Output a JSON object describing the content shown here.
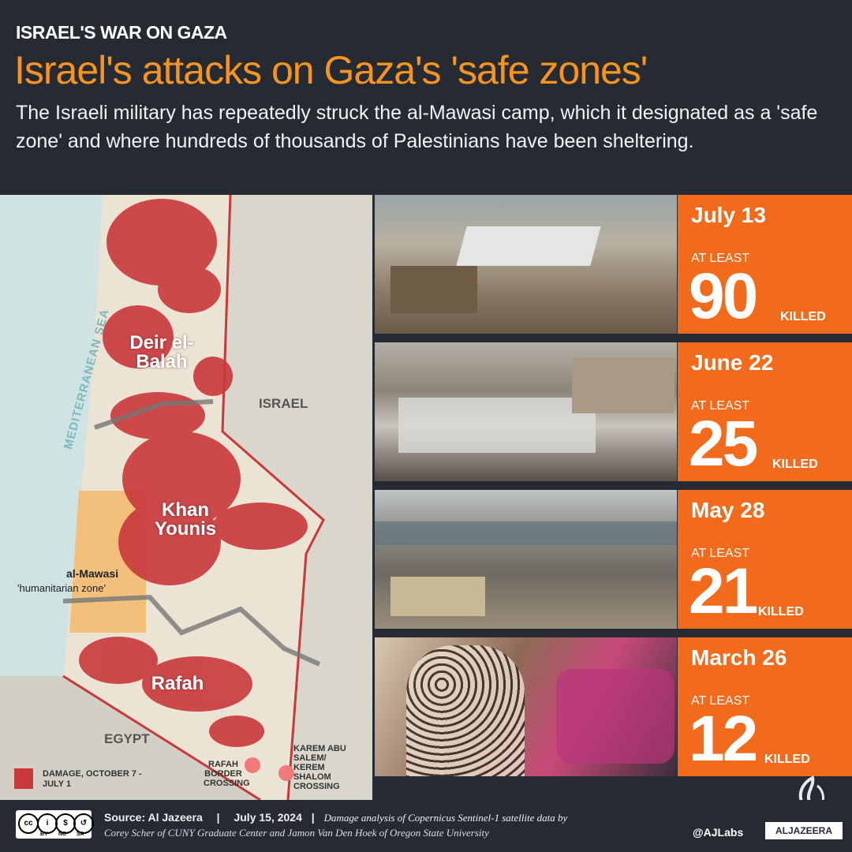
{
  "header": {
    "kicker": "ISRAEL'S WAR ON GAZA",
    "title": "Israel's attacks on Gaza's 'safe zones'",
    "dek": "The Israeli military has repeatedly struck the al-Mawasi camp, which it designated as a 'safe zone' and where hundreds of thousands of Palestinians have been sheltering."
  },
  "map": {
    "sea_label": "MEDITERRANEAN SEA",
    "cities": [
      "Deir el-Balah",
      "Khan Younis",
      "Rafah"
    ],
    "countries": [
      "ISRAEL",
      "EGYPT"
    ],
    "zone_name": "al-Mawasi",
    "zone_sub": "'humanitarian zone'",
    "crossings": [
      "RAFAH BORDER CROSSING",
      "KAREM ABU SALEM/ KEREM SHALOM CROSSING"
    ],
    "legend": "DAMAGE, OCTOBER 7 - JULY 1",
    "colors": {
      "damage": "#c9383b",
      "zone": "#f5b45e",
      "sea": "#cfe3e3",
      "land": "#d9d7cc"
    }
  },
  "attacks": [
    {
      "date": "July 13",
      "at_least": "AT LEAST",
      "killed": "90",
      "killed_label": "KILLED"
    },
    {
      "date": "June 22",
      "at_least": "AT LEAST",
      "killed": "25",
      "killed_label": "KILLED"
    },
    {
      "date": "May 28",
      "at_least": "AT LEAST",
      "killed": "21",
      "killed_label": "KILLED"
    },
    {
      "date": "March 26",
      "at_least": "AT LEAST",
      "killed": "12",
      "killed_label": "KILLED"
    }
  ],
  "footer": {
    "cc_badges": [
      "BY",
      "NC",
      "SA"
    ],
    "source": "Source:  Al Jazeera",
    "date": "July 15, 2024",
    "note_1": "Damage analysis of Copernicus Sentinel-1 satellite data by",
    "note_2": "Corey Scher of CUNY Graduate Center and Jamon Van Den Hoek of Oregon State University",
    "handle": "@AJLabs",
    "brand": "ALJAZEERA"
  }
}
